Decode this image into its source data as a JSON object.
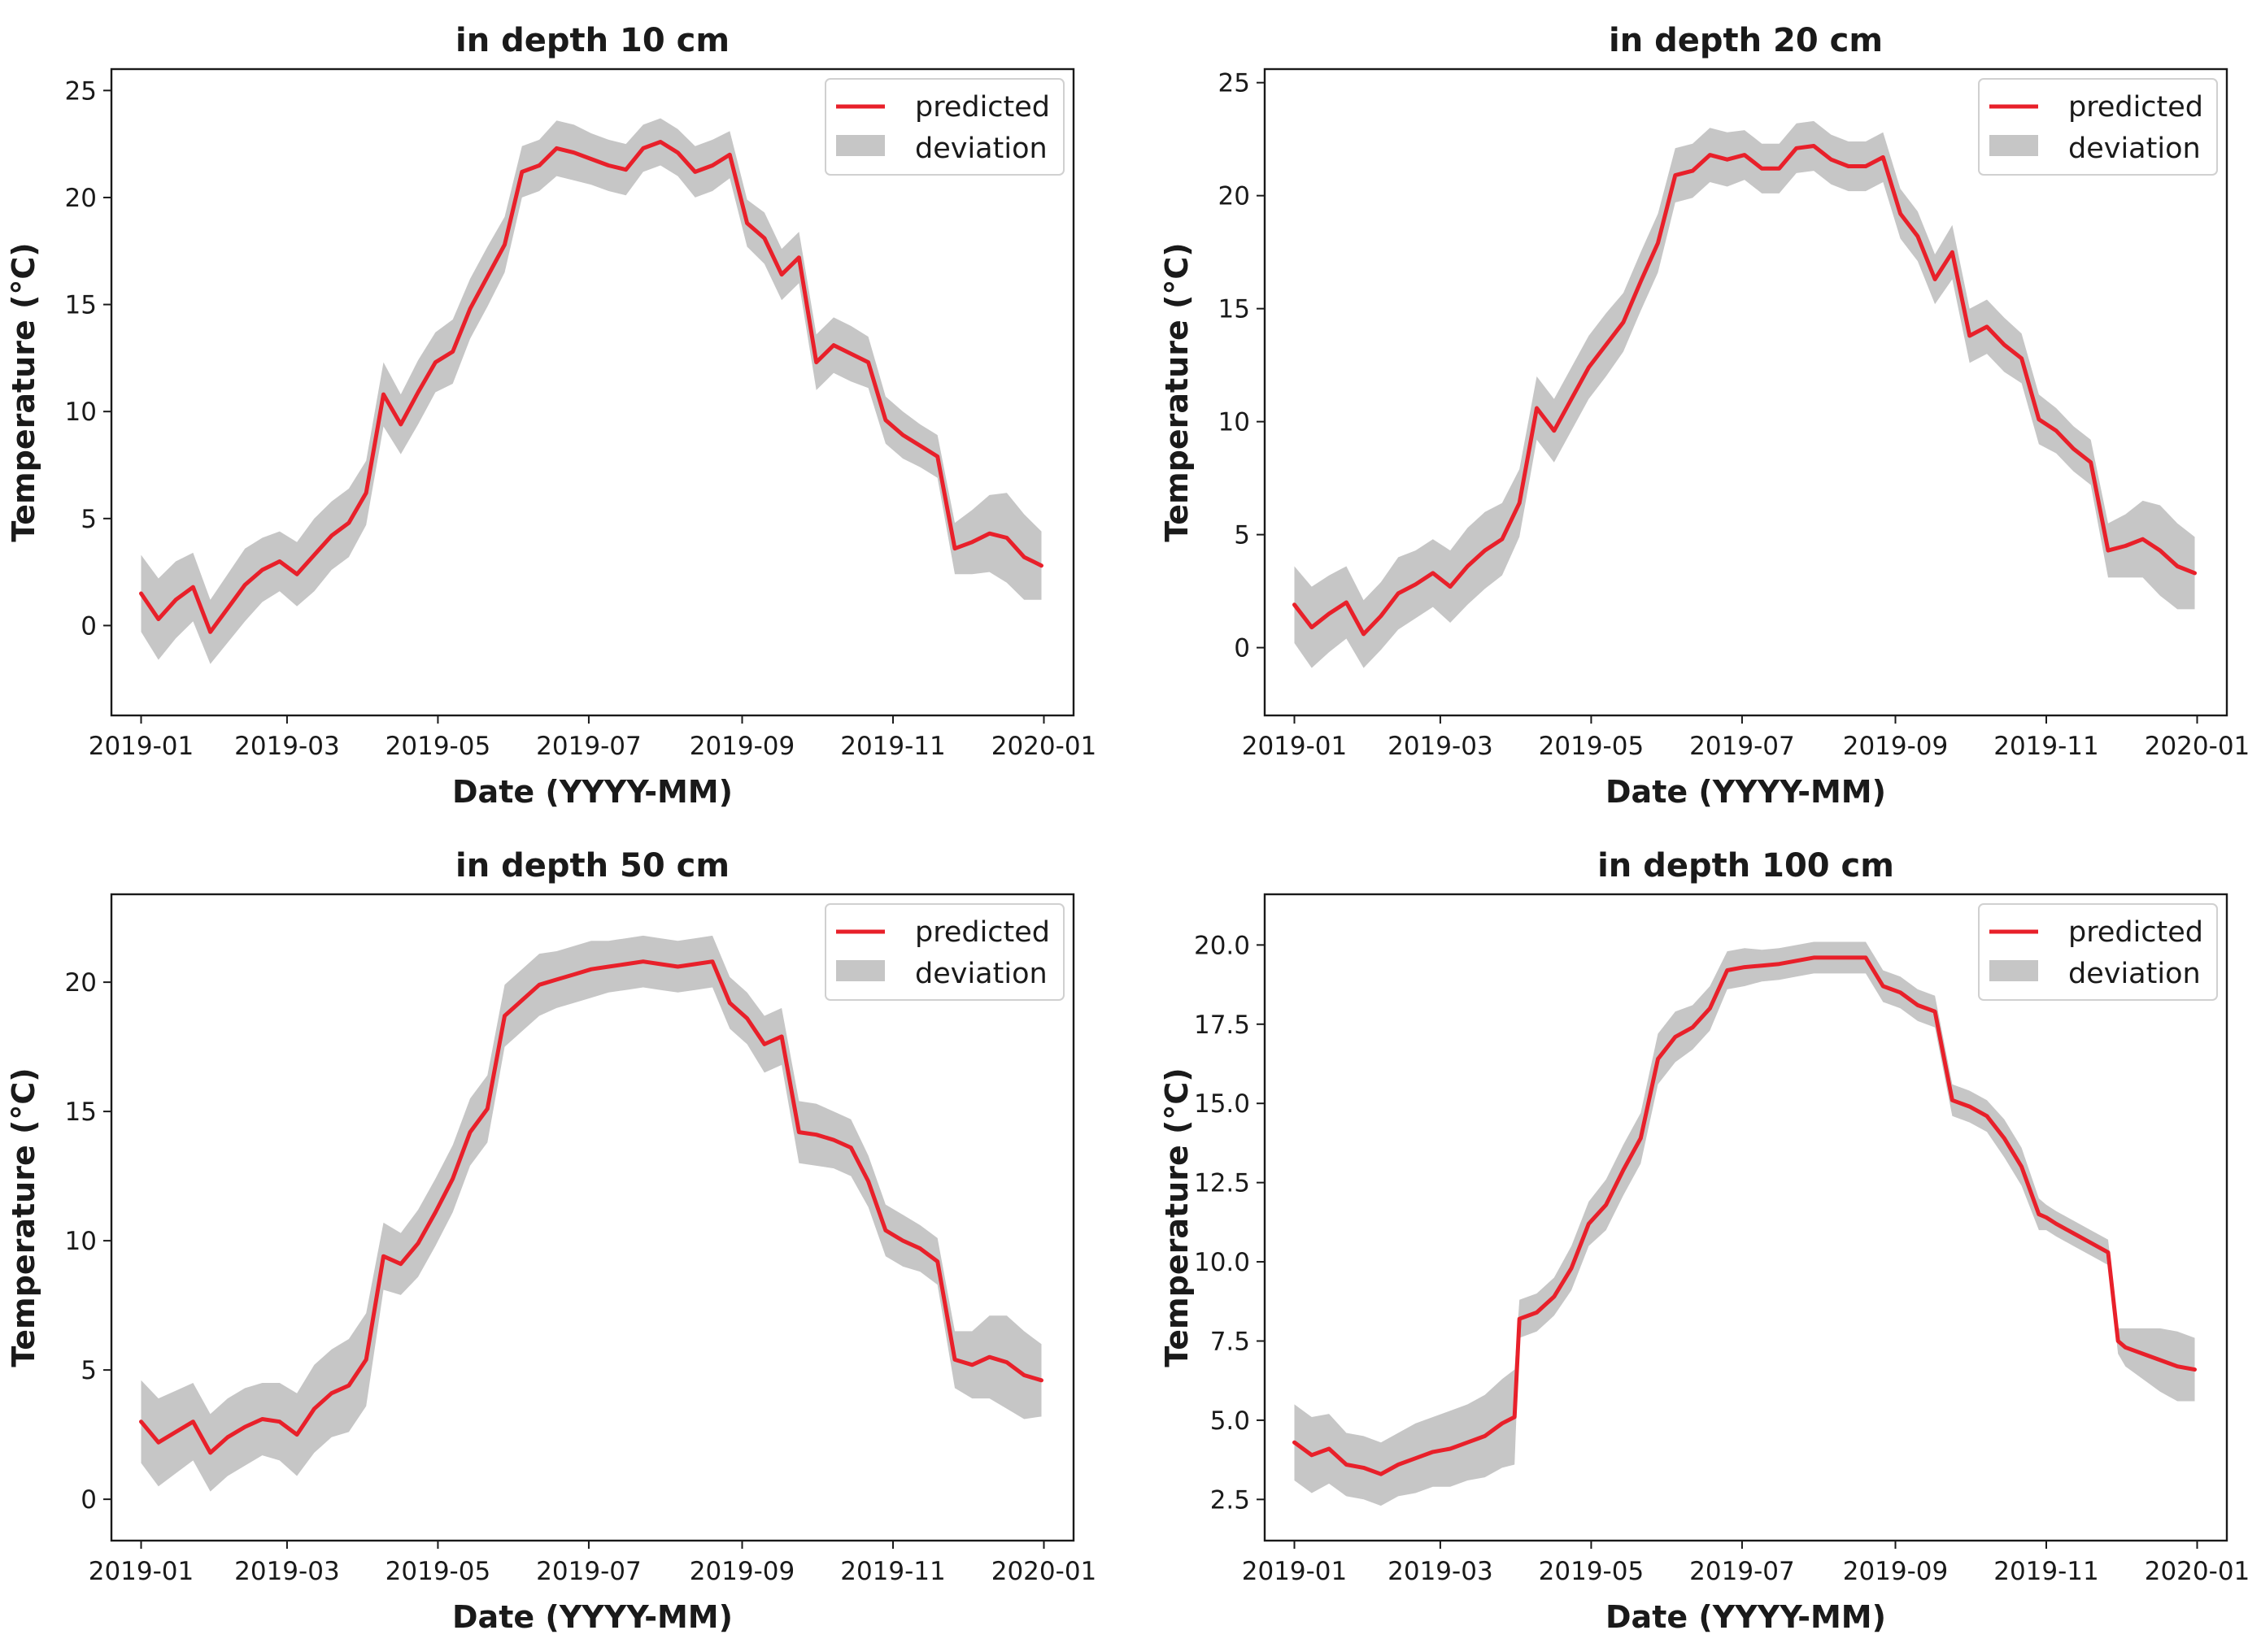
{
  "chart_data": [
    {
      "type": "line",
      "title": "in depth 10 cm",
      "xlabel": "Date (YYYY-MM)",
      "ylabel": "Temperature (°C)",
      "x_tick_labels": [
        "2019-01",
        "2019-03",
        "2019-05",
        "2019-07",
        "2019-09",
        "2019-11",
        "2020-01"
      ],
      "y_ticks": [
        0,
        5,
        10,
        15,
        20,
        25
      ],
      "ylim": [
        -4.2,
        26
      ],
      "legend": {
        "position": "top-right",
        "entries": [
          "predicted",
          "deviation"
        ]
      },
      "series": [
        {
          "name": "predicted",
          "color": "#e8202a",
          "x_days": [
            0,
            7,
            14,
            21,
            28,
            35,
            42,
            49,
            56,
            63,
            70,
            77,
            84,
            91,
            98,
            105,
            112,
            119,
            126,
            133,
            140,
            147,
            154,
            161,
            168,
            175,
            182,
            189,
            196,
            203,
            210,
            217,
            224,
            231,
            238,
            245,
            252,
            259,
            266,
            273,
            280,
            287,
            294,
            301,
            308,
            315,
            322,
            329,
            336,
            343,
            350,
            357,
            364
          ],
          "values": [
            1.5,
            0.3,
            1.2,
            1.8,
            -0.3,
            0.8,
            1.9,
            2.6,
            3.0,
            2.4,
            3.3,
            4.2,
            4.8,
            6.2,
            10.8,
            9.4,
            10.9,
            12.3,
            12.8,
            14.8,
            16.3,
            17.8,
            21.2,
            21.5,
            22.3,
            22.1,
            21.8,
            21.5,
            21.3,
            22.3,
            22.6,
            22.1,
            21.2,
            21.5,
            22.0,
            18.8,
            18.1,
            16.4,
            17.2,
            12.3,
            13.1,
            12.7,
            12.3,
            9.6,
            8.9,
            8.4,
            7.9,
            3.6,
            3.9,
            4.3,
            4.1,
            3.2,
            2.8
          ],
          "deviation": [
            1.8,
            1.9,
            1.8,
            1.6,
            1.5,
            1.6,
            1.7,
            1.5,
            1.4,
            1.5,
            1.7,
            1.6,
            1.6,
            1.5,
            1.5,
            1.4,
            1.5,
            1.4,
            1.5,
            1.4,
            1.4,
            1.3,
            1.2,
            1.2,
            1.3,
            1.3,
            1.2,
            1.2,
            1.2,
            1.1,
            1.1,
            1.1,
            1.2,
            1.2,
            1.1,
            1.1,
            1.2,
            1.2,
            1.2,
            1.3,
            1.3,
            1.3,
            1.2,
            1.1,
            1.1,
            1.0,
            1.0,
            1.2,
            1.5,
            1.8,
            2.1,
            2.0,
            1.6
          ]
        },
        {
          "name": "deviation",
          "color": "#c6c6c6"
        }
      ]
    },
    {
      "type": "line",
      "title": "in depth 20 cm",
      "xlabel": "Date (YYYY-MM)",
      "ylabel": "Temperature (°C)",
      "x_tick_labels": [
        "2019-01",
        "2019-03",
        "2019-05",
        "2019-07",
        "2019-09",
        "2019-11",
        "2020-01"
      ],
      "y_ticks": [
        0,
        5,
        10,
        15,
        20,
        25
      ],
      "ylim": [
        -3.0,
        25.6
      ],
      "legend": {
        "position": "top-right",
        "entries": [
          "predicted",
          "deviation"
        ]
      },
      "series": [
        {
          "name": "predicted",
          "color": "#e8202a",
          "x_days": [
            0,
            7,
            14,
            21,
            28,
            35,
            42,
            49,
            56,
            63,
            70,
            77,
            84,
            91,
            98,
            105,
            112,
            119,
            126,
            133,
            140,
            147,
            154,
            161,
            168,
            175,
            182,
            189,
            196,
            203,
            210,
            217,
            224,
            231,
            238,
            245,
            252,
            259,
            266,
            273,
            280,
            287,
            294,
            301,
            308,
            315,
            322,
            329,
            336,
            343,
            350,
            357,
            364
          ],
          "values": [
            1.9,
            0.9,
            1.5,
            2.0,
            0.6,
            1.4,
            2.4,
            2.8,
            3.3,
            2.7,
            3.6,
            4.3,
            4.8,
            6.4,
            10.6,
            9.6,
            11.0,
            12.4,
            13.4,
            14.4,
            16.2,
            17.9,
            20.9,
            21.1,
            21.8,
            21.6,
            21.8,
            21.2,
            21.2,
            22.1,
            22.2,
            21.6,
            21.3,
            21.3,
            21.7,
            19.2,
            18.2,
            16.3,
            17.5,
            13.8,
            14.2,
            13.4,
            12.8,
            10.1,
            9.6,
            8.8,
            8.2,
            4.3,
            4.5,
            4.8,
            4.3,
            3.6,
            3.3
          ],
          "deviation": [
            1.7,
            1.8,
            1.7,
            1.6,
            1.5,
            1.5,
            1.6,
            1.5,
            1.5,
            1.6,
            1.7,
            1.7,
            1.6,
            1.5,
            1.4,
            1.4,
            1.4,
            1.4,
            1.4,
            1.3,
            1.3,
            1.3,
            1.2,
            1.2,
            1.2,
            1.2,
            1.1,
            1.1,
            1.1,
            1.1,
            1.1,
            1.1,
            1.1,
            1.1,
            1.1,
            1.1,
            1.1,
            1.1,
            1.2,
            1.2,
            1.2,
            1.2,
            1.1,
            1.1,
            1.0,
            1.0,
            1.0,
            1.2,
            1.4,
            1.7,
            2.0,
            1.9,
            1.6
          ]
        },
        {
          "name": "deviation",
          "color": "#c6c6c6"
        }
      ]
    },
    {
      "type": "line",
      "title": "in depth 50 cm",
      "xlabel": "Date (YYYY-MM)",
      "ylabel": "Temperature (°C)",
      "x_tick_labels": [
        "2019-01",
        "2019-03",
        "2019-05",
        "2019-07",
        "2019-09",
        "2019-11",
        "2020-01"
      ],
      "y_ticks": [
        0,
        5,
        10,
        15,
        20
      ],
      "ylim": [
        -1.6,
        23.4
      ],
      "legend": {
        "position": "top-right",
        "entries": [
          "predicted",
          "deviation"
        ]
      },
      "series": [
        {
          "name": "predicted",
          "color": "#e8202a",
          "x_days": [
            0,
            7,
            14,
            21,
            28,
            35,
            42,
            49,
            56,
            63,
            70,
            77,
            84,
            91,
            98,
            105,
            112,
            119,
            126,
            133,
            140,
            147,
            154,
            161,
            168,
            175,
            182,
            189,
            196,
            203,
            210,
            217,
            224,
            231,
            238,
            245,
            252,
            259,
            266,
            273,
            280,
            287,
            294,
            301,
            308,
            315,
            322,
            329,
            336,
            343,
            350,
            357,
            364
          ],
          "values": [
            3.0,
            2.2,
            2.6,
            3.0,
            1.8,
            2.4,
            2.8,
            3.1,
            3.0,
            2.5,
            3.5,
            4.1,
            4.4,
            5.4,
            9.4,
            9.1,
            9.9,
            11.1,
            12.4,
            14.2,
            15.1,
            18.7,
            19.3,
            19.9,
            20.1,
            20.3,
            20.5,
            20.6,
            20.7,
            20.8,
            20.7,
            20.6,
            20.7,
            20.8,
            19.2,
            18.6,
            17.6,
            17.9,
            14.2,
            14.1,
            13.9,
            13.6,
            12.3,
            10.4,
            10.0,
            9.7,
            9.2,
            5.4,
            5.2,
            5.5,
            5.3,
            4.8,
            4.6
          ],
          "deviation": [
            1.6,
            1.7,
            1.6,
            1.5,
            1.5,
            1.5,
            1.5,
            1.4,
            1.5,
            1.6,
            1.7,
            1.7,
            1.8,
            1.8,
            1.3,
            1.2,
            1.3,
            1.3,
            1.3,
            1.3,
            1.3,
            1.2,
            1.2,
            1.2,
            1.1,
            1.1,
            1.1,
            1.0,
            1.0,
            1.0,
            1.0,
            1.0,
            1.0,
            1.0,
            1.0,
            1.0,
            1.1,
            1.1,
            1.2,
            1.2,
            1.1,
            1.1,
            1.0,
            1.0,
            1.0,
            0.9,
            0.9,
            1.1,
            1.3,
            1.6,
            1.8,
            1.7,
            1.4
          ]
        },
        {
          "name": "deviation",
          "color": "#c6c6c6"
        }
      ]
    },
    {
      "type": "line",
      "title": "in depth 100 cm",
      "xlabel": "Date (YYYY-MM)",
      "ylabel": "Temperature (°C)",
      "x_tick_labels": [
        "2019-01",
        "2019-03",
        "2019-05",
        "2019-07",
        "2019-09",
        "2019-11",
        "2020-01"
      ],
      "y_ticks": [
        2.5,
        5.0,
        7.5,
        10.0,
        12.5,
        15.0,
        17.5,
        20.0
      ],
      "ylim": [
        1.2,
        21.6
      ],
      "legend": {
        "position": "top-right",
        "entries": [
          "predicted",
          "deviation"
        ]
      },
      "series": [
        {
          "name": "predicted",
          "color": "#e8202a",
          "x_days": [
            0,
            7,
            14,
            21,
            28,
            35,
            42,
            49,
            56,
            63,
            70,
            77,
            84,
            89,
            91,
            98,
            105,
            112,
            119,
            126,
            133,
            140,
            147,
            154,
            161,
            168,
            175,
            182,
            189,
            196,
            203,
            210,
            217,
            224,
            231,
            238,
            245,
            252,
            259,
            266,
            273,
            280,
            287,
            294,
            301,
            304,
            308,
            315,
            322,
            329,
            333,
            336,
            343,
            350,
            357,
            364
          ],
          "values": [
            4.3,
            3.9,
            4.1,
            3.6,
            3.5,
            3.3,
            3.6,
            3.8,
            4.0,
            4.1,
            4.3,
            4.5,
            4.9,
            5.1,
            8.2,
            8.4,
            8.9,
            9.8,
            11.2,
            11.8,
            12.9,
            13.9,
            16.4,
            17.1,
            17.4,
            18.0,
            19.2,
            19.3,
            19.35,
            19.4,
            19.5,
            19.6,
            19.6,
            19.6,
            19.6,
            18.7,
            18.5,
            18.1,
            17.9,
            15.1,
            14.9,
            14.6,
            13.9,
            13.0,
            11.5,
            11.4,
            11.2,
            10.9,
            10.6,
            10.3,
            7.5,
            7.3,
            7.1,
            6.9,
            6.7,
            6.6
          ],
          "deviation": [
            1.2,
            1.2,
            1.1,
            1.0,
            1.0,
            1.0,
            1.0,
            1.1,
            1.1,
            1.2,
            1.2,
            1.3,
            1.4,
            1.5,
            0.6,
            0.6,
            0.6,
            0.7,
            0.7,
            0.8,
            0.8,
            0.8,
            0.8,
            0.8,
            0.7,
            0.7,
            0.6,
            0.6,
            0.5,
            0.5,
            0.5,
            0.5,
            0.5,
            0.5,
            0.5,
            0.5,
            0.5,
            0.5,
            0.5,
            0.5,
            0.5,
            0.5,
            0.6,
            0.6,
            0.5,
            0.4,
            0.4,
            0.4,
            0.4,
            0.4,
            0.4,
            0.6,
            0.8,
            1.0,
            1.1,
            1.0
          ]
        },
        {
          "name": "deviation",
          "color": "#c6c6c6"
        }
      ]
    }
  ]
}
